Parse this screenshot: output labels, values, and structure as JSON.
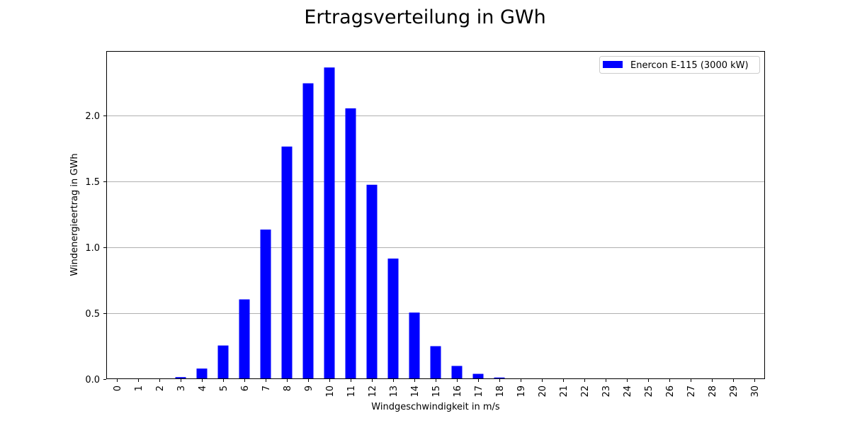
{
  "chart_data": {
    "type": "bar",
    "title": "Ertragsverteilung in GWh",
    "xlabel": "Windgeschwindigkeit in m/s",
    "ylabel": "Windenergieertrag in GWh",
    "categories": [
      "0",
      "1",
      "2",
      "3",
      "4",
      "5",
      "6",
      "7",
      "8",
      "9",
      "10",
      "11",
      "12",
      "13",
      "14",
      "15",
      "16",
      "17",
      "18",
      "19",
      "20",
      "21",
      "22",
      "23",
      "24",
      "25",
      "26",
      "27",
      "28",
      "29",
      "30"
    ],
    "series": [
      {
        "name": "Enercon E-115 (3000 kW)",
        "color": "#0000ff",
        "values": [
          0,
          0,
          0,
          0.015,
          0.08,
          0.255,
          0.605,
          1.135,
          1.765,
          2.245,
          2.365,
          2.055,
          1.475,
          0.915,
          0.505,
          0.25,
          0.1,
          0.04,
          0.012,
          0.004,
          0.001,
          0,
          0,
          0,
          0,
          0,
          0,
          0,
          0,
          0,
          0
        ]
      }
    ],
    "ylim": [
      0,
      2.49
    ],
    "yticks": [
      0.0,
      0.5,
      1.0,
      1.5,
      2.0
    ],
    "ytick_labels": [
      "0.0",
      "0.5",
      "1.0",
      "1.5",
      "2.0"
    ],
    "grid": "y",
    "legend_position": "top-right",
    "xtick_rotation": "vertical"
  }
}
